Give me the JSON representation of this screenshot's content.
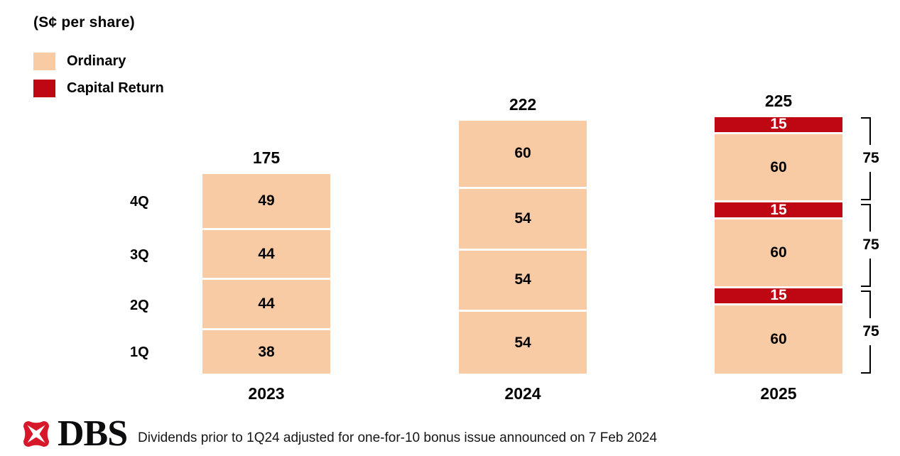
{
  "title": "(S¢ per share)",
  "colors": {
    "ordinary": "#F8CBA4",
    "capital_return": "#BF0713",
    "logo_red": "#D7182A",
    "text": "#000000",
    "background": "#FFFFFF"
  },
  "legend": [
    {
      "key": "ordinary",
      "label": "Ordinary",
      "color": "#F8CBA4"
    },
    {
      "key": "capital_return",
      "label": "Capital Return",
      "color": "#BF0713"
    }
  ],
  "chart_data": {
    "type": "bar",
    "stacked": true,
    "title": "(S¢ per share)",
    "unit": "S¢ per share",
    "categories": [
      "2023",
      "2024",
      "2025"
    ],
    "quarter_axis_labels_top_to_bottom": [
      "4Q",
      "3Q",
      "2Q",
      "1Q"
    ],
    "legend_position": "top-left",
    "grid": false,
    "bars": [
      {
        "year": "2023",
        "total": "175",
        "segments_bottom_to_top": [
          {
            "quarter": "1Q",
            "type": "ordinary",
            "value": 38,
            "label": "38"
          },
          {
            "quarter": "2Q",
            "type": "ordinary",
            "value": 44,
            "label": "44"
          },
          {
            "quarter": "3Q",
            "type": "ordinary",
            "value": 44,
            "label": "44"
          },
          {
            "quarter": "4Q",
            "type": "ordinary",
            "value": 49,
            "label": "49"
          }
        ]
      },
      {
        "year": "2024",
        "total": "222",
        "segments_bottom_to_top": [
          {
            "quarter": "1Q",
            "type": "ordinary",
            "value": 54,
            "label": "54"
          },
          {
            "quarter": "2Q",
            "type": "ordinary",
            "value": 54,
            "label": "54"
          },
          {
            "quarter": "3Q",
            "type": "ordinary",
            "value": 54,
            "label": "54"
          },
          {
            "quarter": "4Q",
            "type": "ordinary",
            "value": 60,
            "label": "60"
          }
        ]
      },
      {
        "year": "2025",
        "total": "225",
        "segments_bottom_to_top": [
          {
            "type": "ordinary",
            "value": 60,
            "label": "60"
          },
          {
            "type": "capital_return",
            "value": 15,
            "label": "15"
          },
          {
            "type": "ordinary",
            "value": 60,
            "label": "60"
          },
          {
            "type": "capital_return",
            "value": 15,
            "label": "15"
          },
          {
            "type": "ordinary",
            "value": 60,
            "label": "60"
          },
          {
            "type": "capital_return",
            "value": 15,
            "label": "15"
          }
        ],
        "group_brackets_top_to_bottom": [
          {
            "label": "75",
            "value": 75
          },
          {
            "label": "75",
            "value": 75
          },
          {
            "label": "75",
            "value": 75
          }
        ]
      }
    ]
  },
  "footer": {
    "logo_text": "DBS",
    "note": "Dividends prior to 1Q24 adjusted for one-for-10 bonus issue announced on 7 Feb 2024"
  }
}
